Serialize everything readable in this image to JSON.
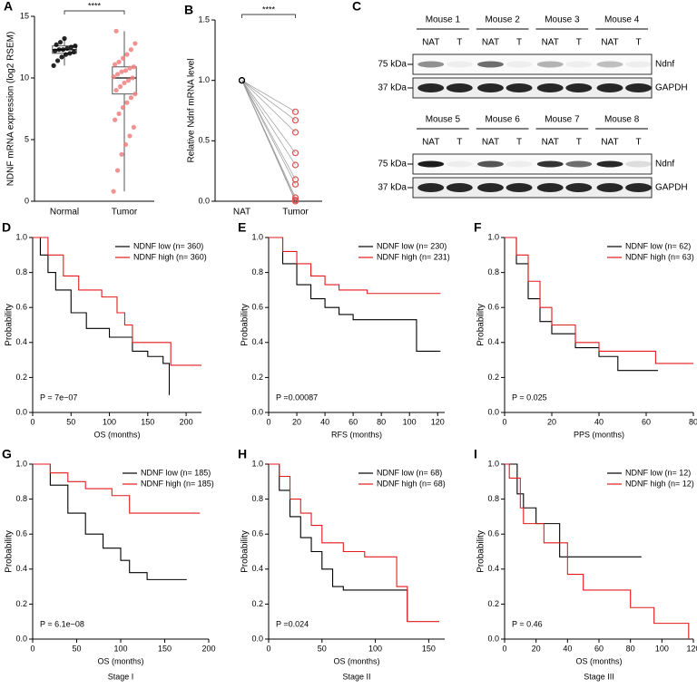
{
  "chart_data": [
    {
      "type": "box",
      "panel": "A",
      "ylabel": "NDNF mRNA expression (log2 RSEM)",
      "significance": "****",
      "ylim": [
        0,
        15
      ],
      "yticks": [
        0,
        5,
        10,
        15
      ],
      "groups": [
        {
          "name": "Normal",
          "color": "#000000",
          "min": 11.0,
          "q1": 12.0,
          "median": 12.3,
          "q3": 12.6,
          "max": 13.2,
          "points": [
            11.0,
            11.4,
            11.7,
            11.9,
            12.0,
            12.1,
            12.2,
            12.3,
            12.3,
            12.4,
            12.5,
            12.6,
            12.7,
            12.9,
            13.2
          ]
        },
        {
          "name": "Tumor",
          "color": "#f08080",
          "min": 0.8,
          "q1": 8.7,
          "median": 10.0,
          "q3": 10.9,
          "max": 13.8,
          "points": [
            0.8,
            2.5,
            3.8,
            4.6,
            5.3,
            6.0,
            6.6,
            7.1,
            7.6,
            8.0,
            8.4,
            8.7,
            9.0,
            9.3,
            9.6,
            9.8,
            10.0,
            10.1,
            10.3,
            10.5,
            10.6,
            10.8,
            10.9,
            11.1,
            11.3,
            11.6,
            11.9,
            12.3,
            12.8,
            13.8
          ]
        }
      ]
    },
    {
      "type": "paired",
      "panel": "B",
      "ylabel": "Relative Ndnf mRNA level",
      "significance": "****",
      "categories": [
        "NAT",
        "Tumor"
      ],
      "ylim": [
        0,
        1.5
      ],
      "yticks": [
        {
          "value": 0,
          "label": "0.0"
        },
        {
          "value": 0.5,
          "label": "0.5"
        },
        {
          "value": 1,
          "label": "1.0"
        },
        {
          "value": 1.5,
          "label": "1.5"
        }
      ],
      "colors": [
        "#000000",
        "#d9534f"
      ],
      "nat_values": [
        1,
        1,
        1,
        1,
        1,
        1,
        1,
        1,
        1,
        1
      ],
      "tumor_values": [
        0.74,
        0.67,
        0.57,
        0.4,
        0.3,
        0.18,
        0.14,
        0.03,
        0.01,
        0.0
      ]
    },
    {
      "type": "km",
      "panel": "D",
      "xlabel": "OS (months)",
      "ylabel": "Probability",
      "pvalue": "P = 7e−07",
      "legend": "topright",
      "xlim": [
        0,
        220
      ],
      "xticks": [
        0,
        50,
        100,
        150,
        200
      ],
      "ylim": [
        0,
        1
      ],
      "yticks": [
        {
          "value": 0,
          "label": "0.0"
        },
        {
          "value": 0.2,
          "label": "0.2"
        },
        {
          "value": 0.4,
          "label": "0.4"
        },
        {
          "value": 0.6,
          "label": "0.6"
        },
        {
          "value": 0.8,
          "label": "0.8"
        },
        {
          "value": 1,
          "label": "1.0"
        }
      ],
      "series": [
        {
          "name": "NDNF low (n= 360)",
          "color": "#000000",
          "x": [
            0,
            10,
            20,
            30,
            50,
            70,
            100,
            130,
            150,
            170,
            178
          ],
          "values": [
            1,
            0.9,
            0.8,
            0.7,
            0.57,
            0.48,
            0.43,
            0.35,
            0.32,
            0.28,
            0.1
          ]
        },
        {
          "name": "NDNF high (n= 360)",
          "color": "#e41a1c",
          "x": [
            0,
            20,
            40,
            60,
            90,
            110,
            120,
            130,
            160,
            180,
            220
          ],
          "values": [
            1,
            0.9,
            0.78,
            0.7,
            0.66,
            0.57,
            0.5,
            0.4,
            0.4,
            0.27,
            0.27
          ]
        }
      ]
    },
    {
      "type": "km",
      "panel": "E",
      "xlabel": "RFS (months)",
      "ylabel": "Probability",
      "pvalue": "P =0.00087",
      "legend": "topright",
      "xlim": [
        0,
        125
      ],
      "xticks": [
        0,
        20,
        40,
        60,
        80,
        100,
        120
      ],
      "ylim": [
        0,
        1
      ],
      "yticks": [
        {
          "value": 0,
          "label": "0.0"
        },
        {
          "value": 0.2,
          "label": "0.2"
        },
        {
          "value": 0.4,
          "label": "0.4"
        },
        {
          "value": 0.6,
          "label": "0.6"
        },
        {
          "value": 0.8,
          "label": "0.8"
        },
        {
          "value": 1,
          "label": "1.0"
        }
      ],
      "series": [
        {
          "name": "NDNF low (n= 230)",
          "color": "#000000",
          "x": [
            0,
            10,
            20,
            30,
            40,
            50,
            60,
            80,
            105,
            122
          ],
          "values": [
            1,
            0.85,
            0.73,
            0.65,
            0.6,
            0.56,
            0.53,
            0.53,
            0.35,
            0.35
          ]
        },
        {
          "name": "NDNF high (n= 231)",
          "color": "#e41a1c",
          "x": [
            0,
            10,
            20,
            30,
            40,
            50,
            70,
            122
          ],
          "values": [
            1,
            0.92,
            0.85,
            0.78,
            0.73,
            0.7,
            0.68,
            0.68
          ]
        }
      ]
    },
    {
      "type": "km",
      "panel": "F",
      "xlabel": "PPS (months)",
      "ylabel": "Probability",
      "pvalue": "P = 0.025",
      "legend": "topright",
      "xlim": [
        0,
        80
      ],
      "xticks": [
        0,
        20,
        40,
        60,
        80
      ],
      "ylim": [
        0,
        1
      ],
      "yticks": [
        {
          "value": 0,
          "label": "0.0"
        },
        {
          "value": 0.2,
          "label": "0.2"
        },
        {
          "value": 0.4,
          "label": "0.4"
        },
        {
          "value": 0.6,
          "label": "0.6"
        },
        {
          "value": 0.8,
          "label": "0.8"
        },
        {
          "value": 1,
          "label": "1.0"
        }
      ],
      "series": [
        {
          "name": "NDNF low (n= 62)",
          "color": "#000000",
          "x": [
            0,
            5,
            10,
            15,
            20,
            30,
            40,
            48,
            65
          ],
          "values": [
            1,
            0.85,
            0.65,
            0.52,
            0.45,
            0.37,
            0.32,
            0.24,
            0.24
          ]
        },
        {
          "name": "NDNF high (n= 63)",
          "color": "#e41a1c",
          "x": [
            0,
            5,
            10,
            15,
            20,
            30,
            40,
            64,
            80
          ],
          "values": [
            1,
            0.9,
            0.75,
            0.6,
            0.5,
            0.4,
            0.35,
            0.28,
            0.28
          ]
        }
      ]
    },
    {
      "type": "km",
      "panel": "G",
      "xlabel": "OS (months)",
      "subtitle": "Stage I",
      "ylabel": "Probability",
      "pvalue": "P = 6.1e−08",
      "legend": "topright",
      "xlim": [
        0,
        200
      ],
      "xticks": [
        0,
        50,
        100,
        150,
        200
      ],
      "ylim": [
        0,
        1
      ],
      "yticks": [
        {
          "value": 0,
          "label": "0.0"
        },
        {
          "value": 0.2,
          "label": "0.2"
        },
        {
          "value": 0.4,
          "label": "0.4"
        },
        {
          "value": 0.6,
          "label": "0.6"
        },
        {
          "value": 0.8,
          "label": "0.8"
        },
        {
          "value": 1,
          "label": "1.0"
        }
      ],
      "series": [
        {
          "name": "NDNF low (n= 185)",
          "color": "#000000",
          "x": [
            0,
            20,
            40,
            60,
            80,
            100,
            110,
            130,
            175
          ],
          "values": [
            1,
            0.88,
            0.72,
            0.6,
            0.52,
            0.45,
            0.38,
            0.34,
            0.34
          ]
        },
        {
          "name": "NDNF high (n= 185)",
          "color": "#e41a1c",
          "x": [
            0,
            20,
            40,
            60,
            90,
            110,
            190
          ],
          "values": [
            1,
            0.95,
            0.9,
            0.86,
            0.82,
            0.72,
            0.72
          ]
        }
      ]
    },
    {
      "type": "km",
      "panel": "H",
      "xlabel": "OS (months)",
      "subtitle": "Stage II",
      "ylabel": "Probability",
      "pvalue": "P =0.024",
      "legend": "topright",
      "xlim": [
        0,
        165
      ],
      "xticks": [
        0,
        50,
        100,
        150
      ],
      "ylim": [
        0,
        1
      ],
      "yticks": [
        {
          "value": 0,
          "label": "0.0"
        },
        {
          "value": 0.2,
          "label": "0.2"
        },
        {
          "value": 0.4,
          "label": "0.4"
        },
        {
          "value": 0.6,
          "label": "0.6"
        },
        {
          "value": 0.8,
          "label": "0.8"
        },
        {
          "value": 1,
          "label": "1.0"
        }
      ],
      "series": [
        {
          "name": "NDNF low (n= 68)",
          "color": "#000000",
          "x": [
            0,
            10,
            20,
            30,
            40,
            50,
            60,
            70,
            120,
            130
          ],
          "values": [
            1,
            0.85,
            0.7,
            0.58,
            0.5,
            0.4,
            0.3,
            0.28,
            0.28,
            0.1
          ]
        },
        {
          "name": "NDNF high (n= 68)",
          "color": "#e41a1c",
          "x": [
            0,
            10,
            20,
            30,
            40,
            50,
            70,
            90,
            120,
            130,
            160
          ],
          "values": [
            1,
            0.93,
            0.8,
            0.72,
            0.65,
            0.55,
            0.5,
            0.47,
            0.3,
            0.1,
            0.1
          ]
        }
      ]
    },
    {
      "type": "km",
      "panel": "I",
      "xlabel": "OS (months)",
      "subtitle": "Stage III",
      "ylabel": "Probability",
      "pvalue": "P = 0.46",
      "legend": "topright",
      "xlim": [
        0,
        120
      ],
      "xticks": [
        0,
        20,
        40,
        60,
        80,
        100,
        120
      ],
      "ylim": [
        0,
        1
      ],
      "yticks": [
        {
          "value": 0,
          "label": "0.0"
        },
        {
          "value": 0.2,
          "label": "0.2"
        },
        {
          "value": 0.4,
          "label": "0.4"
        },
        {
          "value": 0.6,
          "label": "0.6"
        },
        {
          "value": 0.8,
          "label": "0.8"
        },
        {
          "value": 1,
          "label": "1.0"
        }
      ],
      "series": [
        {
          "name": "NDNF low (n= 12)",
          "color": "#000000",
          "x": [
            0,
            8,
            12,
            20,
            35,
            87
          ],
          "values": [
            1,
            0.83,
            0.75,
            0.66,
            0.47,
            0.47
          ]
        },
        {
          "name": "NDNF high (n= 12)",
          "color": "#e41a1c",
          "x": [
            0,
            3,
            10,
            12,
            25,
            40,
            50,
            80,
            95,
            117
          ],
          "values": [
            1,
            0.92,
            0.75,
            0.66,
            0.55,
            0.37,
            0.28,
            0.18,
            0.09,
            0
          ]
        }
      ]
    }
  ],
  "blot": {
    "panel": "C",
    "blocks": [
      {
        "mice": [
          "Mouse 1",
          "Mouse 2",
          "Mouse 3",
          "Mouse 4"
        ],
        "lanes": [
          "NAT",
          "T"
        ],
        "markers": [
          "75 kDa",
          "37 kDa"
        ],
        "proteins": [
          "Ndnf",
          "GAPDH"
        ]
      },
      {
        "mice": [
          "Mouse 5",
          "Mouse 6",
          "Mouse 7",
          "Mouse 8"
        ],
        "lanes": [
          "NAT",
          "T"
        ],
        "markers": [
          "75 kDa",
          "37 kDa"
        ],
        "proteins": [
          "Ndnf",
          "GAPDH"
        ]
      }
    ]
  }
}
